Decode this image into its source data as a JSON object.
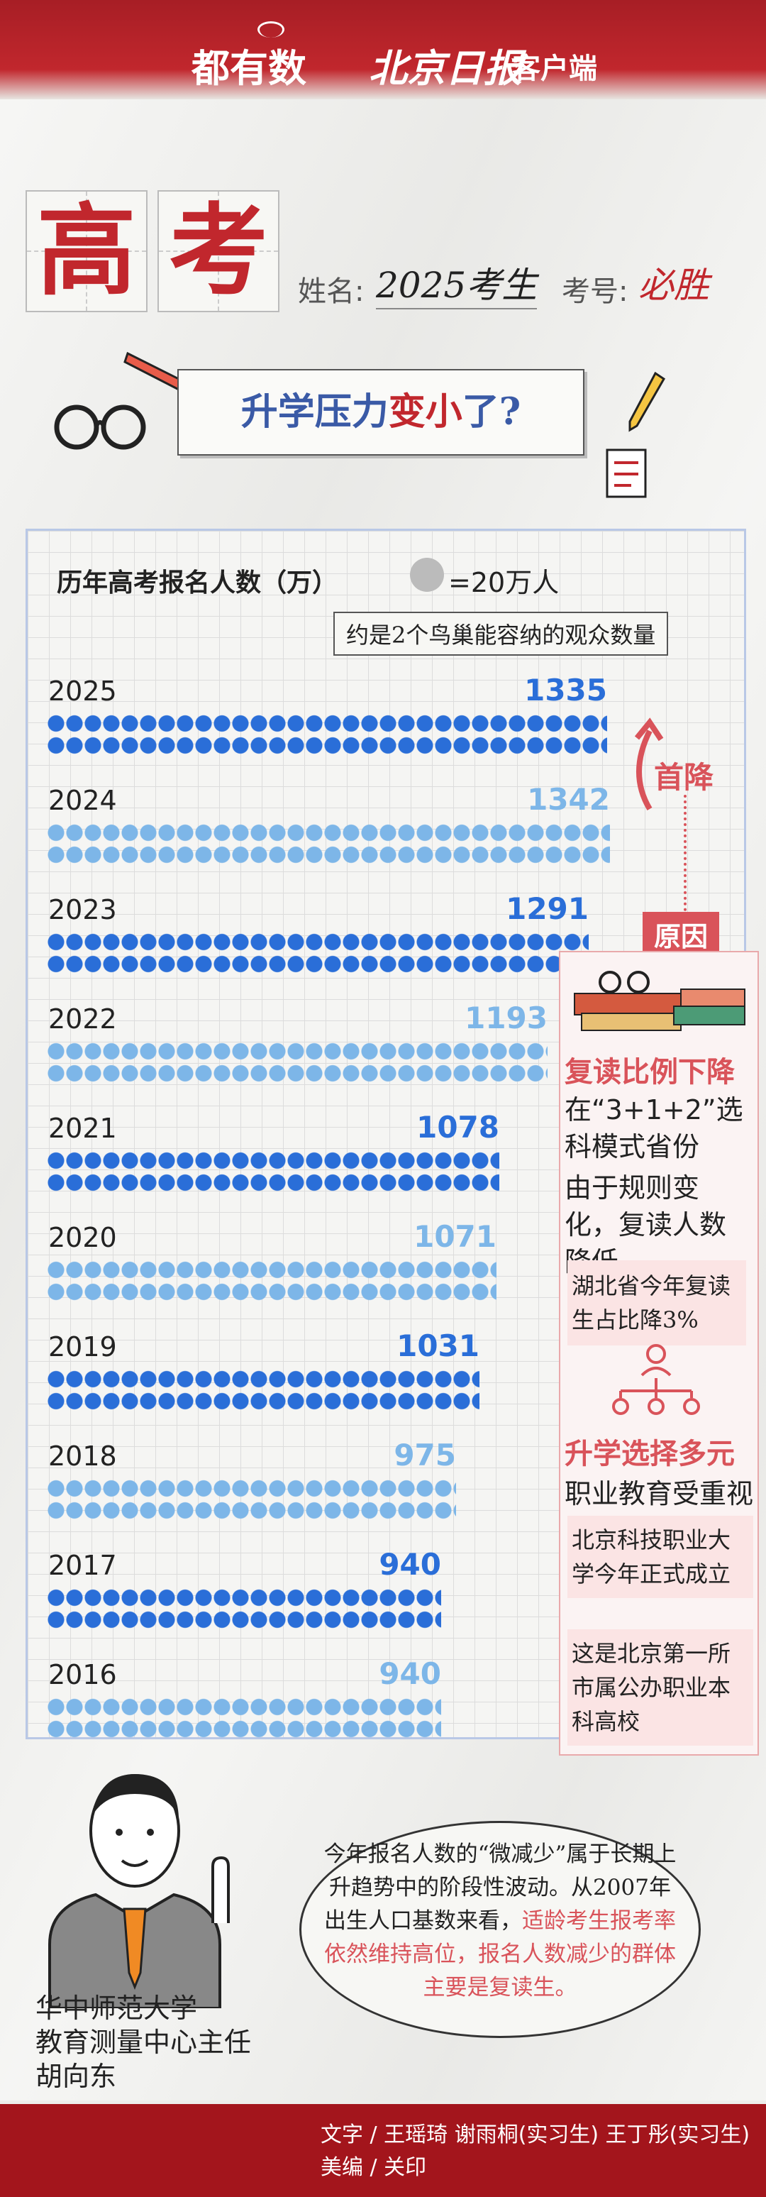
{
  "header": {
    "brand1": "都有数",
    "brand2": "北京日报",
    "brand2_suffix": "客户端"
  },
  "title": {
    "char1": "高",
    "char2": "考",
    "name_label": "姓名:",
    "name_value": "2025考生",
    "id_label": "考号:",
    "id_value": "必胜"
  },
  "banner": {
    "part1": "升学压力",
    "part2": "变小",
    "part3": "了?"
  },
  "chart": {
    "title": "历年高考报名人数（万）",
    "legend_value": "=20万人",
    "note": "约是2个鸟巢能容纳的观众数量",
    "trend_label": "首降",
    "reason_label": "原因"
  },
  "chart_data": {
    "type": "bar",
    "categories": [
      "2025",
      "2024",
      "2023",
      "2022",
      "2021",
      "2020",
      "2019",
      "2018",
      "2017",
      "2016"
    ],
    "values": [
      1335,
      1342,
      1291,
      1193,
      1078,
      1071,
      1031,
      975,
      940,
      940
    ],
    "title": "历年高考报名人数（万）",
    "xmax": 1342
  },
  "side": {
    "h1": "复读比例下降",
    "t1": "在“3+1+2”选科模式省份",
    "t2": "由于规则变化，复读人数降低",
    "n1": "湖北省今年复读生占比降3%",
    "h2": "升学选择多元",
    "t3": "职业教育受重视",
    "n2": "北京科技职业大学今年正式成立",
    "n3": "这是北京第一所市属公办职业本科高校"
  },
  "expert": {
    "org": "华中师范大学",
    "role": "教育测量中心主任",
    "name": "胡向东",
    "quote_a": "今年报名人数的“微减少”属于长期上升趋势中的阶段性波动。从2007年出生人口基数来看，",
    "quote_b": "适龄考生报考率依然维持高位，报名人数减少的群体主要是复读生。"
  },
  "footer": {
    "line1": "文字 / 王瑶琦  谢雨桐(实习生)  王丁彤(实习生)",
    "line2": "美编 / 关印"
  },
  "colors": {
    "red": "#c1272d",
    "blue": "#2a6ed8",
    "light_blue": "#7db6e8"
  }
}
